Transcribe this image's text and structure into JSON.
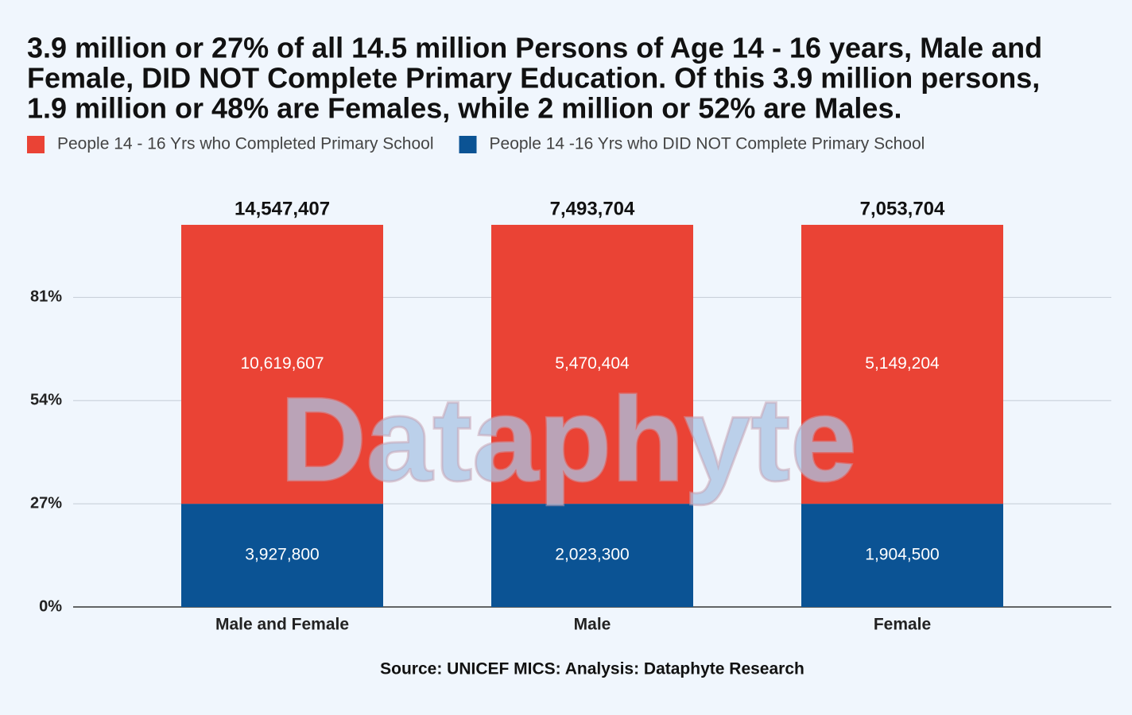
{
  "chart_data": {
    "type": "bar",
    "stacking": "percent",
    "title_lines": [
      "3.9 million or 27% of all 14.5 million Persons of Age 14 - 16 years, Male and",
      "Female, DID NOT Complete Primary Education. Of this 3.9 million persons,",
      "1.9 million or 48% are Females, while 2 million or 52% are Males."
    ],
    "categories": [
      "Male and Female",
      "Male",
      "Female"
    ],
    "series": [
      {
        "name": "People 14 - 16 Yrs who Completed Primary School",
        "color": "#ea4335",
        "values": [
          10619607,
          5470404,
          5149204
        ],
        "value_labels": [
          "10,619,607",
          "5,470,404",
          "5,149,204"
        ]
      },
      {
        "name": "People 14 -16 Yrs who DID NOT Complete Primary School",
        "color": "#0b5394",
        "values": [
          3927800,
          2023300,
          1904500
        ],
        "value_labels": [
          "3,927,800",
          "2,023,300",
          "1,904,500"
        ]
      }
    ],
    "total_labels": [
      "14,547,407",
      "7,493,704",
      "7,053,704"
    ],
    "ylim": [
      0,
      100
    ],
    "yticks": [
      {
        "value": 0,
        "label": "0%"
      },
      {
        "value": 27,
        "label": "27%"
      },
      {
        "value": 54,
        "label": "54%"
      },
      {
        "value": 81,
        "label": "81%"
      }
    ],
    "grid": true,
    "legend": "top",
    "watermark": "Dataphyte",
    "source": "Source: UNICEF MICS: Analysis: Dataphyte Research"
  }
}
